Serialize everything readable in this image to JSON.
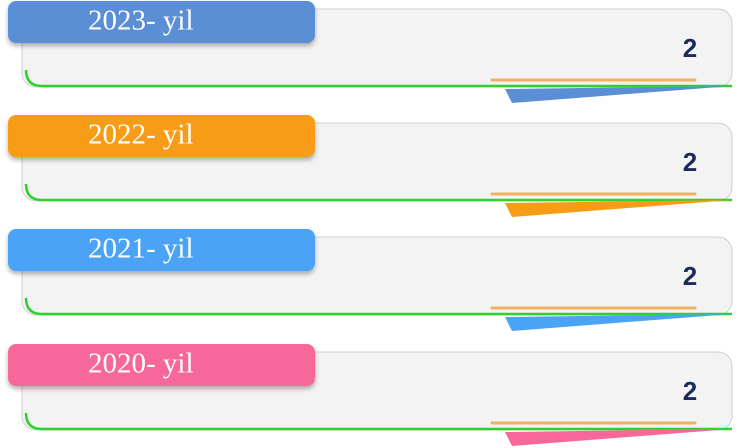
{
  "items": [
    {
      "label": "2023- yil",
      "value": 2
    },
    {
      "label": "2022- yil",
      "value": 2
    },
    {
      "label": "2021- yil",
      "value": 2
    },
    {
      "label": "2020- yil",
      "value": 2
    }
  ]
}
